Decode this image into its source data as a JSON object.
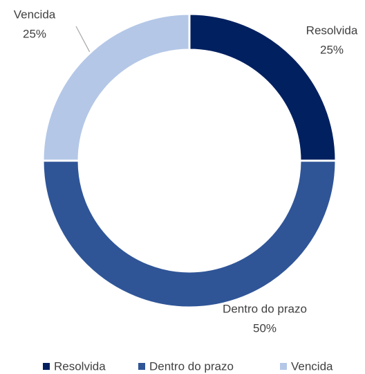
{
  "chart_data": {
    "type": "donut",
    "categories": [
      "Resolvida",
      "Dentro do prazo",
      "Vencida"
    ],
    "values": [
      25,
      50,
      25
    ],
    "value_labels": [
      "25%",
      "50%",
      "25%"
    ],
    "colors": [
      "#002060",
      "#2f5597",
      "#b4c7e7"
    ],
    "legend": "bottom"
  }
}
